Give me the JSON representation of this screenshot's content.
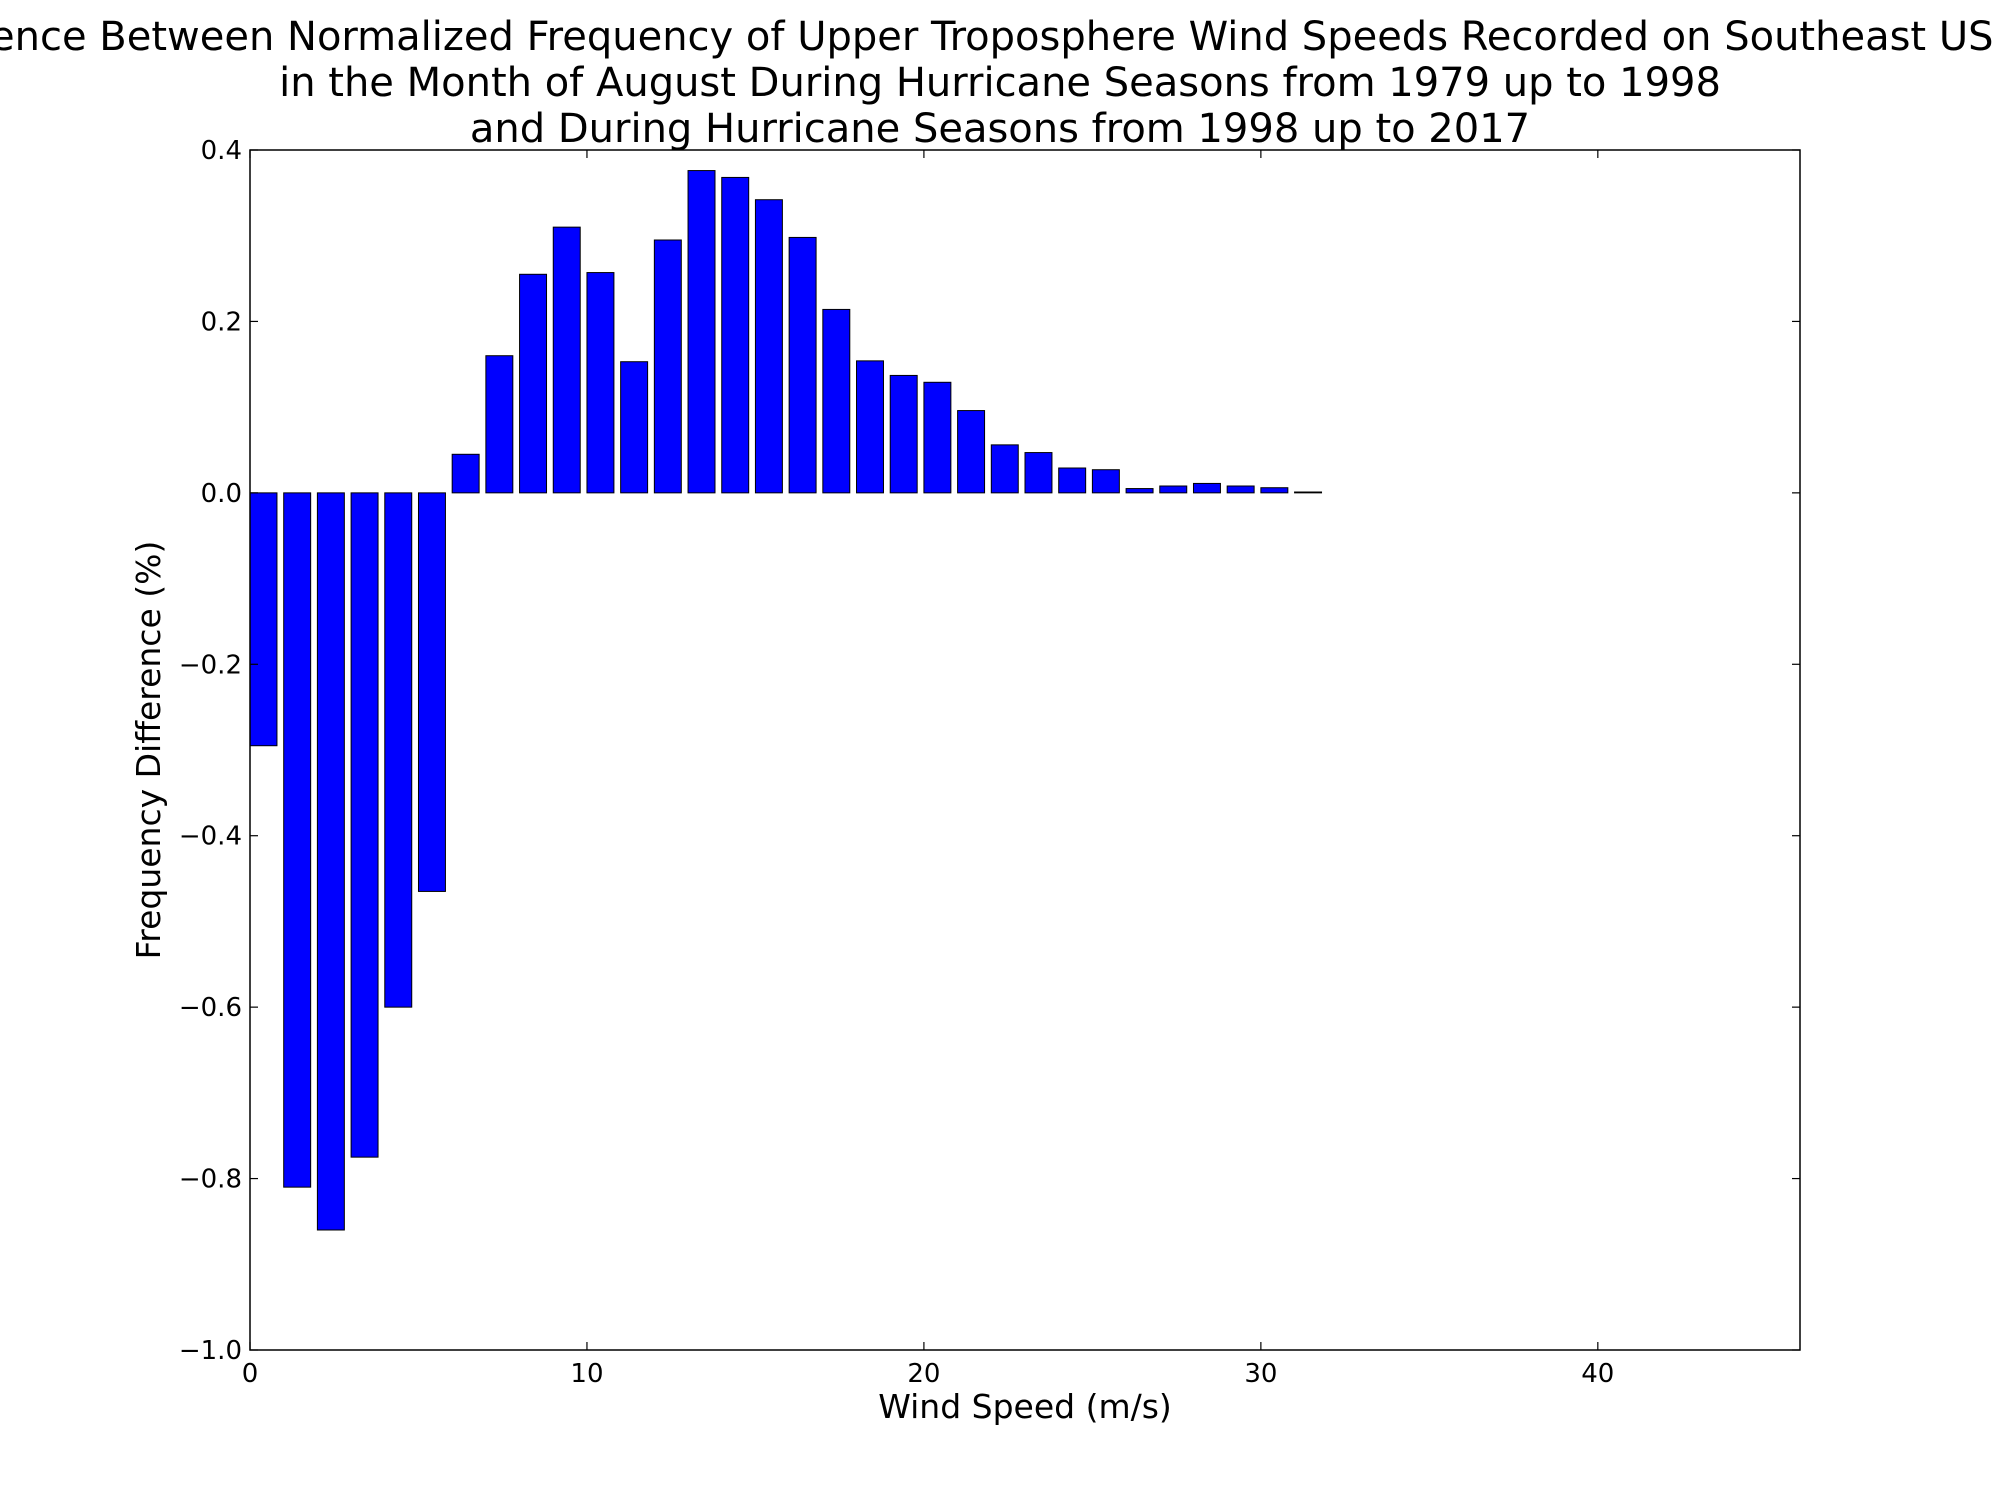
{
  "chart_data": {
    "type": "bar",
    "title_lines": [
      "Difference Between Normalized Frequency of Upper Troposphere Wind Speeds Recorded on Southeast US Coast",
      "in the Month of August During Hurricane Seasons from 1979 up to 1998",
      "and During Hurricane Seasons from 1998 up to 2017"
    ],
    "xlabel": "Wind Speed (m/s)",
    "ylabel": "Frequency Difference (%)",
    "xlim": [
      0,
      46
    ],
    "ylim": [
      -1.0,
      0.4
    ],
    "xticks": [
      0,
      10,
      20,
      30,
      40
    ],
    "xtick_labels": [
      "0",
      "10",
      "20",
      "30",
      "40"
    ],
    "yticks": [
      0.4,
      0.2,
      0.0,
      -0.2,
      -0.4,
      -0.6,
      -0.8,
      -1.0
    ],
    "ytick_labels": [
      "0.4",
      "0.2",
      "0.0",
      "−0.2",
      "−0.4",
      "−0.6",
      "−0.8",
      "−1.0"
    ],
    "bar_width": 0.8,
    "bar_color": "#0000ff",
    "x": [
      0,
      1,
      2,
      3,
      4,
      5,
      6,
      7,
      8,
      9,
      10,
      11,
      12,
      13,
      14,
      15,
      16,
      17,
      18,
      19,
      20,
      21,
      22,
      23,
      24,
      25,
      26,
      27,
      28,
      29,
      30,
      31,
      32,
      33,
      34,
      35,
      36,
      37,
      38,
      39,
      40,
      41,
      42,
      43,
      44
    ],
    "values": [
      -0.295,
      -0.81,
      -0.86,
      -0.775,
      -0.6,
      -0.465,
      0.045,
      0.16,
      0.255,
      0.31,
      0.257,
      0.153,
      0.295,
      0.376,
      0.368,
      0.342,
      0.298,
      0.214,
      0.154,
      0.137,
      0.129,
      0.096,
      0.056,
      0.047,
      0.029,
      0.027,
      0.005,
      0.008,
      0.011,
      0.008,
      0.006,
      0.001,
      0,
      0,
      0,
      0,
      0,
      0,
      0,
      0,
      0,
      0,
      0,
      0,
      0
    ],
    "grid": false,
    "legend": "none"
  }
}
